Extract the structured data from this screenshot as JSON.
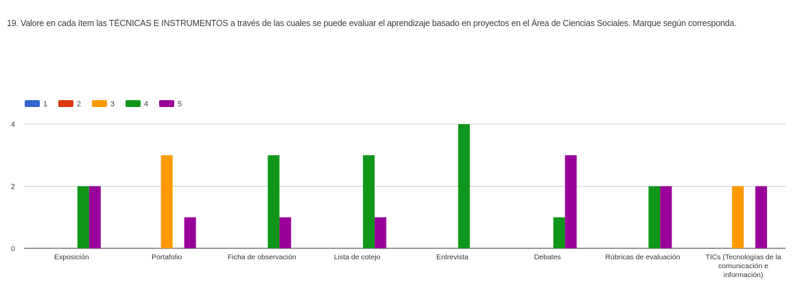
{
  "question": "19. Valore en cada ítem las TÉCNICAS E INSTRUMENTOS a través de las cuales se puede evaluar el aprendizaje basado en proyectos en el Área de Ciencias Sociales.   Marque según corresponda.",
  "colors": {
    "s1": "#3366cc",
    "s2": "#dc3912",
    "s3": "#ff9900",
    "s4": "#109618",
    "s5": "#990099",
    "grid": "#cccccc",
    "axis": "#333333"
  },
  "chart_data": {
    "type": "bar",
    "title": "",
    "xlabel": "",
    "ylabel": "",
    "ylim": [
      0,
      4
    ],
    "yticks": [
      0,
      2,
      4
    ],
    "grid": true,
    "legend_position": "top-left",
    "categories": [
      "Exposición",
      "Portafolio",
      "Ficha de observación",
      "Lista de cotejo",
      "Entrevista",
      "Debates",
      "Rúbricas de evaluación",
      "TICs (Tecnologías de la comunicación e información)"
    ],
    "series": [
      {
        "name": "1",
        "values": [
          0,
          0,
          0,
          0,
          0,
          0,
          0,
          0
        ]
      },
      {
        "name": "2",
        "values": [
          0,
          0,
          0,
          0,
          0,
          0,
          0,
          0
        ]
      },
      {
        "name": "3",
        "values": [
          0,
          3,
          0,
          0,
          0,
          0,
          0,
          2
        ]
      },
      {
        "name": "4",
        "values": [
          2,
          0,
          3,
          3,
          4,
          1,
          2,
          0
        ]
      },
      {
        "name": "5",
        "values": [
          2,
          1,
          1,
          1,
          0,
          3,
          2,
          2
        ]
      }
    ]
  }
}
